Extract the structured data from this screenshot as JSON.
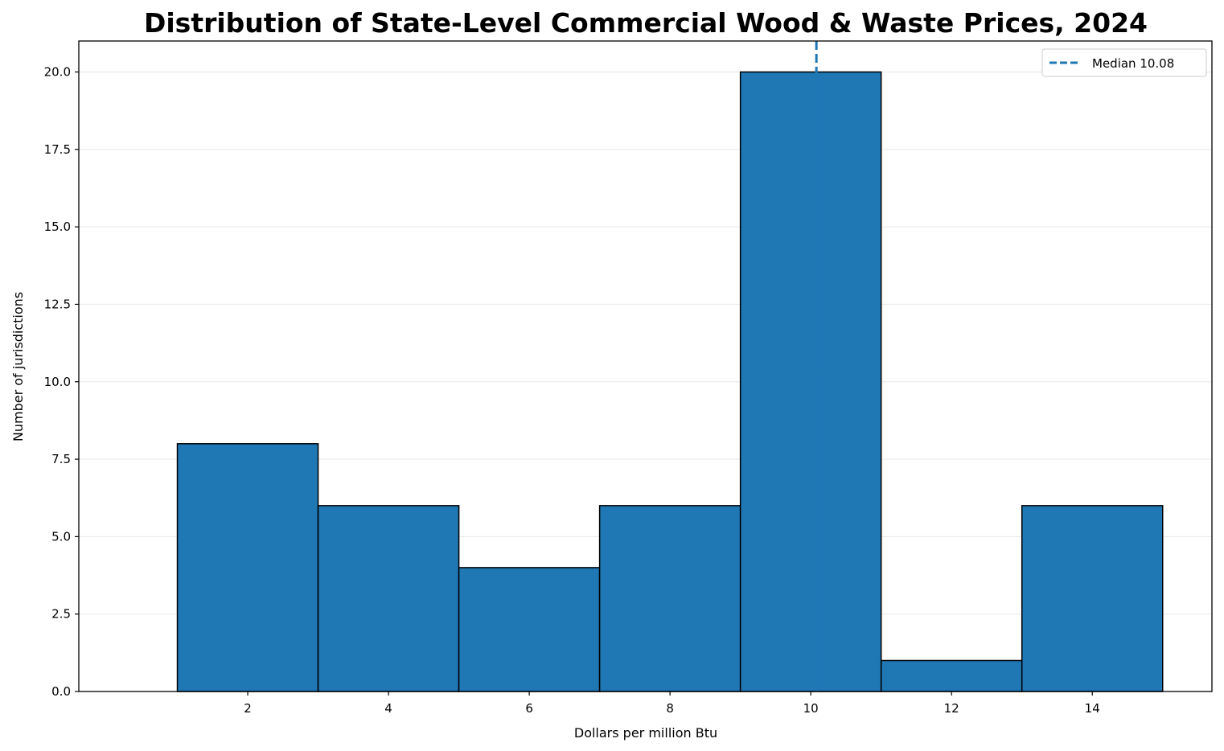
{
  "chart_data": {
    "type": "bar",
    "title": "Distribution of State-Level Commercial Wood & Waste Prices, 2024",
    "xlabel": "Dollars per million Btu",
    "ylabel": "Number of jurisdictions",
    "bins": [
      {
        "start": 1,
        "end": 3,
        "count": 8
      },
      {
        "start": 3,
        "end": 5,
        "count": 6
      },
      {
        "start": 5,
        "end": 7,
        "count": 4
      },
      {
        "start": 7,
        "end": 9,
        "count": 6
      },
      {
        "start": 9,
        "end": 11,
        "count": 20
      },
      {
        "start": 11,
        "end": 13,
        "count": 1
      },
      {
        "start": 13,
        "end": 15,
        "count": 6
      }
    ],
    "xlim": [
      -0.4,
      15.7
    ],
    "ylim": [
      0,
      21
    ],
    "x_ticks": [
      2,
      4,
      6,
      8,
      10,
      12,
      14
    ],
    "x_tick_labels": [
      "2",
      "4",
      "6",
      "8",
      "10",
      "12",
      "14"
    ],
    "y_ticks": [
      0,
      2.5,
      5,
      7.5,
      10,
      12.5,
      15,
      17.5,
      20
    ],
    "y_tick_labels": [
      "0.0",
      "2.5",
      "5.0",
      "7.5",
      "10.0",
      "12.5",
      "15.0",
      "17.5",
      "20.0"
    ],
    "median": {
      "value": 10.08,
      "label": "Median 10.08"
    },
    "grid": "horizontal",
    "legend_position": "top-right",
    "colors": {
      "bar": "#1f77b4",
      "bar_edge": "#000000",
      "median_line": "#1f77b4",
      "grid": "#ebebeb"
    }
  }
}
